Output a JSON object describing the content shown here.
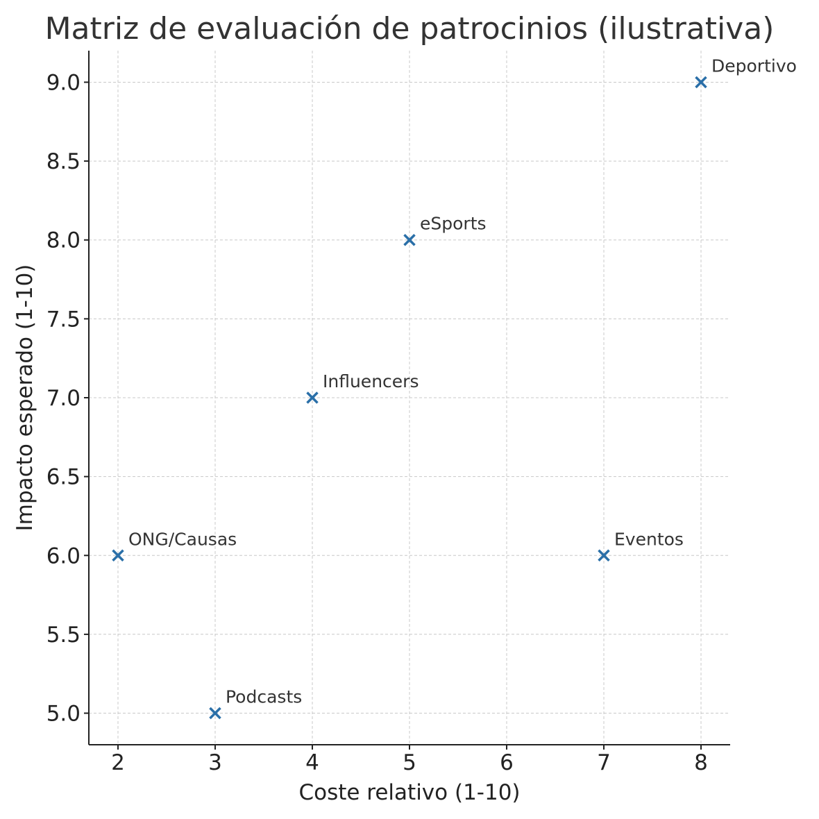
{
  "chart_data": {
    "type": "scatter",
    "title": "Matriz de evaluación de patrocinios (ilustrativa)",
    "xlabel": "Coste relativo (1-10)",
    "ylabel": "Impacto esperado (1-10)",
    "xlim": [
      1.7,
      8.3
    ],
    "ylim": [
      4.8,
      9.2
    ],
    "xticks": [
      2,
      3,
      4,
      5,
      6,
      7,
      8
    ],
    "yticks": [
      5.0,
      5.5,
      6.0,
      6.5,
      7.0,
      7.5,
      8.0,
      8.5,
      9.0
    ],
    "grid": true,
    "marker": "x",
    "marker_color": "#2a6fa8",
    "points": [
      {
        "label": "ONG/Causas",
        "x": 2,
        "y": 6
      },
      {
        "label": "Podcasts",
        "x": 3,
        "y": 5
      },
      {
        "label": "Influencers",
        "x": 4,
        "y": 7
      },
      {
        "label": "eSports",
        "x": 5,
        "y": 8
      },
      {
        "label": "Eventos",
        "x": 7,
        "y": 6
      },
      {
        "label": "Deportivo",
        "x": 8,
        "y": 9
      }
    ]
  }
}
